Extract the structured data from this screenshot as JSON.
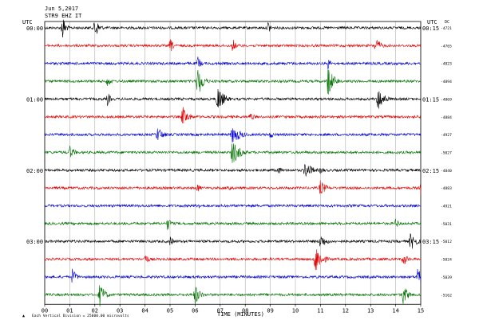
{
  "header": {
    "date": "Jun 5,2017",
    "station": "STR9 EHZ IT",
    "left_axis_title": "UTC",
    "right_axis_title": "UTC",
    "dc_title": "DC"
  },
  "footer": {
    "scale_note": "Each Vertical Division = 25000.00 microvolts",
    "scale_marker": "▲"
  },
  "chart_data": {
    "type": "line",
    "title": "",
    "xlabel": "TIME (MINUTES)",
    "ylabel": "UTC",
    "xlim": [
      0,
      15
    ],
    "x_ticks": [
      "00",
      "01",
      "02",
      "03",
      "04",
      "05",
      "06",
      "07",
      "08",
      "09",
      "10",
      "11",
      "12",
      "13",
      "14",
      "15"
    ],
    "grid": true,
    "trace_colors": [
      "#000000",
      "#e00000",
      "#0000d0",
      "#007000"
    ],
    "left_time_labels": [
      {
        "trace": 0,
        "label": "00:00"
      },
      {
        "trace": 4,
        "label": "01:00"
      },
      {
        "trace": 8,
        "label": "02:00"
      },
      {
        "trace": 12,
        "label": "03:00"
      }
    ],
    "right_time_labels": [
      {
        "trace": 0,
        "label": "00:15"
      },
      {
        "trace": 4,
        "label": "01:15"
      },
      {
        "trace": 8,
        "label": "02:15"
      },
      {
        "trace": 12,
        "label": "03:15"
      }
    ],
    "series": [
      {
        "row": 0,
        "color": "#000000",
        "dc": "-4721",
        "events": [
          {
            "x": 0.7,
            "amp": 1.8,
            "w": 0.15
          },
          {
            "x": 2.0,
            "amp": 1.4,
            "w": 0.2
          },
          {
            "x": 8.9,
            "amp": 0.9,
            "w": 0.15
          }
        ]
      },
      {
        "row": 1,
        "color": "#e00000",
        "dc": "-4765",
        "events": [
          {
            "x": 5.0,
            "amp": 1.0,
            "w": 0.15
          },
          {
            "x": 7.5,
            "amp": 0.9,
            "w": 0.15
          },
          {
            "x": 13.2,
            "amp": 1.0,
            "w": 0.25
          }
        ]
      },
      {
        "row": 2,
        "color": "#0000d0",
        "dc": "-4823",
        "events": [
          {
            "x": 6.1,
            "amp": 1.0,
            "w": 0.15
          },
          {
            "x": 11.3,
            "amp": 0.7,
            "w": 0.15
          }
        ]
      },
      {
        "row": 3,
        "color": "#007000",
        "dc": "-4894",
        "events": [
          {
            "x": 2.5,
            "amp": 0.9,
            "w": 0.15
          },
          {
            "x": 6.1,
            "amp": 2.0,
            "w": 0.25
          },
          {
            "x": 11.3,
            "amp": 2.0,
            "w": 0.25
          }
        ]
      },
      {
        "row": 4,
        "color": "#000000",
        "dc": "-4869",
        "events": [
          {
            "x": 2.5,
            "amp": 0.9,
            "w": 0.15
          },
          {
            "x": 6.9,
            "amp": 1.6,
            "w": 0.3
          },
          {
            "x": 13.3,
            "amp": 1.4,
            "w": 0.3
          }
        ]
      },
      {
        "row": 5,
        "color": "#e00000",
        "dc": "-4884",
        "events": [
          {
            "x": 5.5,
            "amp": 1.2,
            "w": 0.3
          },
          {
            "x": 8.2,
            "amp": 0.6,
            "w": 0.2
          }
        ]
      },
      {
        "row": 6,
        "color": "#0000d0",
        "dc": "-4927",
        "events": [
          {
            "x": 4.5,
            "amp": 0.9,
            "w": 0.3
          },
          {
            "x": 7.5,
            "amp": 1.1,
            "w": 0.4
          },
          {
            "x": 9.0,
            "amp": 0.5,
            "w": 0.2
          }
        ]
      },
      {
        "row": 7,
        "color": "#007000",
        "dc": "-5027",
        "events": [
          {
            "x": 1.0,
            "amp": 0.8,
            "w": 0.25
          },
          {
            "x": 7.5,
            "amp": 1.5,
            "w": 0.35
          }
        ]
      },
      {
        "row": 8,
        "color": "#000000",
        "dc": "-4840",
        "events": [
          {
            "x": 9.3,
            "amp": 0.6,
            "w": 0.2
          },
          {
            "x": 10.4,
            "amp": 1.0,
            "w": 0.35
          },
          {
            "x": 11.0,
            "amp": 0.5,
            "w": 0.2
          }
        ]
      },
      {
        "row": 9,
        "color": "#e00000",
        "dc": "-4883",
        "events": [
          {
            "x": 6.1,
            "amp": 0.6,
            "w": 0.15
          },
          {
            "x": 7.3,
            "amp": 0.6,
            "w": 0.15
          },
          {
            "x": 11.0,
            "amp": 1.0,
            "w": 0.25
          },
          {
            "x": 15.0,
            "amp": 0.9,
            "w": 0.1
          }
        ]
      },
      {
        "row": 10,
        "color": "#0000d0",
        "dc": "-4921",
        "events": [
          {
            "x": 6.1,
            "amp": 0.5,
            "w": 0.15
          }
        ]
      },
      {
        "row": 11,
        "color": "#007000",
        "dc": "-5031",
        "events": [
          {
            "x": 4.9,
            "amp": 0.8,
            "w": 0.2
          },
          {
            "x": 14.0,
            "amp": 0.6,
            "w": 0.2
          }
        ]
      },
      {
        "row": 12,
        "color": "#000000",
        "dc": "-5012",
        "events": [
          {
            "x": 5.0,
            "amp": 0.6,
            "w": 0.2
          },
          {
            "x": 11.0,
            "amp": 0.9,
            "w": 0.3
          },
          {
            "x": 14.6,
            "amp": 1.1,
            "w": 0.3
          }
        ]
      },
      {
        "row": 13,
        "color": "#e00000",
        "dc": "-5024",
        "events": [
          {
            "x": 4.0,
            "amp": 0.7,
            "w": 0.2
          },
          {
            "x": 10.8,
            "amp": 1.8,
            "w": 0.3
          },
          {
            "x": 14.3,
            "amp": 0.9,
            "w": 0.2
          }
        ]
      },
      {
        "row": 14,
        "color": "#0000d0",
        "dc": "-5039",
        "events": [
          {
            "x": 1.1,
            "amp": 1.0,
            "w": 0.2
          },
          {
            "x": 14.9,
            "amp": 1.6,
            "w": 0.3
          }
        ]
      },
      {
        "row": 15,
        "color": "#007000",
        "dc": "-5162",
        "events": [
          {
            "x": 2.2,
            "amp": 1.4,
            "w": 0.25
          },
          {
            "x": 6.0,
            "amp": 1.2,
            "w": 0.25
          },
          {
            "x": 14.3,
            "amp": 1.2,
            "w": 0.25
          }
        ]
      }
    ]
  }
}
